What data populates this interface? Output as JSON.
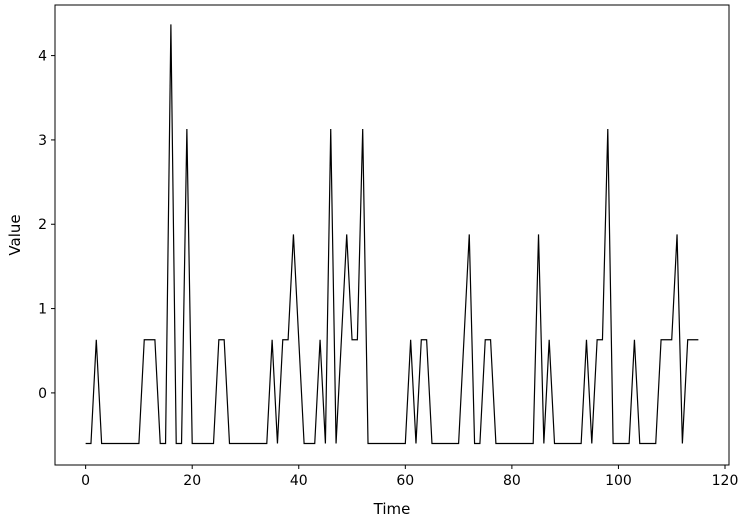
{
  "chart_data": {
    "type": "line",
    "title": "",
    "xlabel": "Time",
    "ylabel": "Value",
    "xlim": [
      -5.75,
      120.75
    ],
    "ylim": [
      -0.855,
      4.6
    ],
    "xticks": [
      0,
      20,
      40,
      60,
      80,
      100,
      120
    ],
    "yticks": [
      0,
      1,
      2,
      3,
      4
    ],
    "grid": false,
    "legend": "none",
    "line_color": "#000000",
    "series": [
      {
        "x": [
          0,
          1,
          2,
          3,
          4,
          5,
          6,
          7,
          8,
          9,
          10,
          11,
          12,
          13,
          14,
          15,
          16,
          17,
          18,
          19,
          20,
          21,
          22,
          23,
          24,
          25,
          26,
          27,
          28,
          29,
          30,
          31,
          32,
          33,
          34,
          35,
          36,
          37,
          38,
          39,
          40,
          41,
          42,
          43,
          44,
          45,
          46,
          47,
          48,
          49,
          50,
          51,
          52,
          53,
          54,
          55,
          56,
          57,
          58,
          59,
          60,
          61,
          62,
          63,
          64,
          65,
          66,
          67,
          68,
          69,
          70,
          71,
          72,
          73,
          74,
          75,
          76,
          77,
          78,
          79,
          80,
          81,
          82,
          83,
          84,
          85,
          86,
          87,
          88,
          89,
          90,
          91,
          92,
          93,
          94,
          95,
          96,
          97,
          98,
          99,
          100,
          101,
          102,
          103,
          104,
          105,
          106,
          107,
          108,
          109,
          110,
          111,
          112,
          113,
          114,
          115
        ],
        "values": [
          -0.6,
          -0.6,
          0.63,
          -0.6,
          -0.6,
          -0.6,
          -0.6,
          -0.6,
          -0.6,
          -0.6,
          -0.6,
          0.63,
          0.63,
          0.63,
          -0.6,
          -0.6,
          4.37,
          -0.6,
          -0.6,
          3.13,
          -0.6,
          -0.6,
          -0.6,
          -0.6,
          -0.6,
          0.63,
          0.63,
          -0.6,
          -0.6,
          -0.6,
          -0.6,
          -0.6,
          -0.6,
          -0.6,
          -0.6,
          0.63,
          -0.6,
          0.63,
          0.63,
          1.88,
          0.63,
          -0.6,
          -0.6,
          -0.6,
          0.63,
          -0.6,
          3.13,
          -0.6,
          0.63,
          1.88,
          0.63,
          0.63,
          3.13,
          -0.6,
          -0.6,
          -0.6,
          -0.6,
          -0.6,
          -0.6,
          -0.6,
          -0.6,
          0.63,
          -0.6,
          0.63,
          0.63,
          -0.6,
          -0.6,
          -0.6,
          -0.6,
          -0.6,
          -0.6,
          0.63,
          1.88,
          -0.6,
          -0.6,
          0.63,
          0.63,
          -0.6,
          -0.6,
          -0.6,
          -0.6,
          -0.6,
          -0.6,
          -0.6,
          -0.6,
          1.88,
          -0.6,
          0.63,
          -0.6,
          -0.6,
          -0.6,
          -0.6,
          -0.6,
          -0.6,
          0.63,
          -0.6,
          0.63,
          0.63,
          3.13,
          -0.6,
          -0.6,
          -0.6,
          -0.6,
          0.63,
          -0.6,
          -0.6,
          -0.6,
          -0.6,
          0.63,
          0.63,
          0.63,
          1.88,
          -0.6,
          0.63,
          0.63,
          0.63
        ]
      }
    ]
  }
}
